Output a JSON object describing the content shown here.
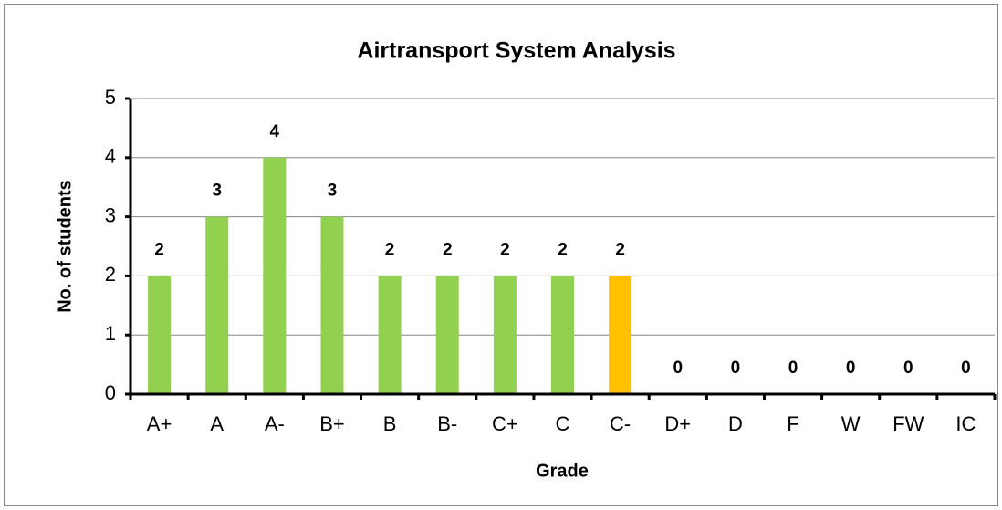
{
  "chart_data": {
    "type": "bar",
    "title": "Airtransport System Analysis",
    "x_label": "Grade",
    "y_label": "No. of students",
    "categories": [
      "A+",
      "A",
      "A-",
      "B+",
      "B",
      "B-",
      "C+",
      "C",
      "C-",
      "D+",
      "D",
      "F",
      "W",
      "FW",
      "IC"
    ],
    "values": [
      2,
      3,
      4,
      3,
      2,
      2,
      2,
      2,
      2,
      0,
      0,
      0,
      0,
      0,
      0
    ],
    "colors": [
      "#92d050",
      "#92d050",
      "#92d050",
      "#92d050",
      "#92d050",
      "#92d050",
      "#92d050",
      "#92d050",
      "#ffc000",
      "#92d050",
      "#92d050",
      "#92d050",
      "#92d050",
      "#92d050",
      "#92d050"
    ],
    "ylim": [
      0,
      5
    ],
    "yticks": [
      0,
      1,
      2,
      3,
      4,
      5
    ],
    "grid": true
  }
}
